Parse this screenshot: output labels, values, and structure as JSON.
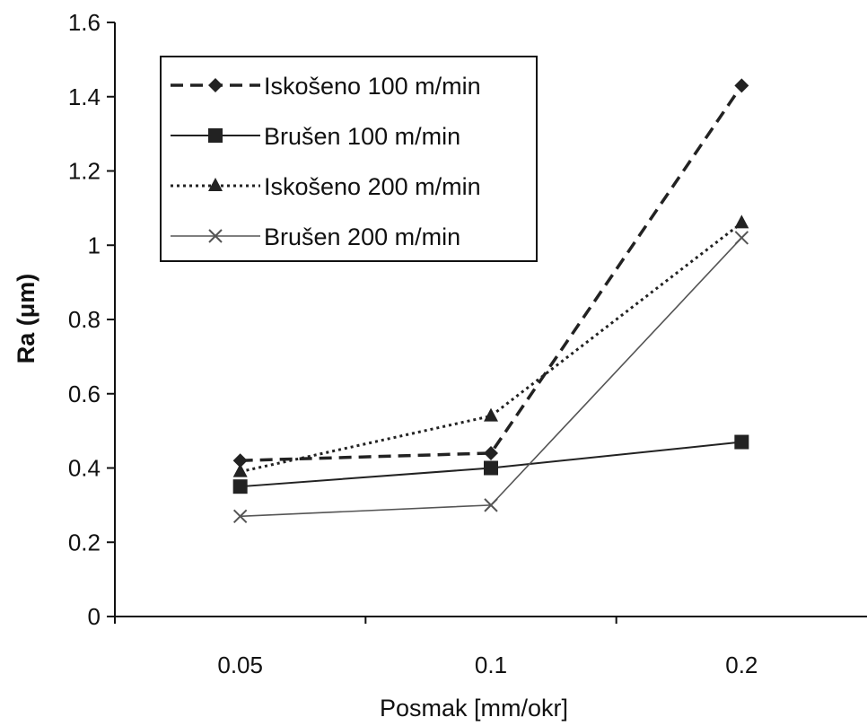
{
  "chart_data": {
    "type": "line",
    "title": "",
    "xlabel": "Posmak [mm/okr]",
    "ylabel": "Ra (μm)",
    "categories": [
      "0.05",
      "0.1",
      "0.2"
    ],
    "ylim": [
      0,
      1.6
    ],
    "yticks": [
      0,
      0.2,
      0.4,
      0.6,
      0.8,
      1,
      1.2,
      1.4,
      1.6
    ],
    "ytick_labels": [
      "0",
      "0.2",
      "0.4",
      "0.6",
      "0.8",
      "1",
      "1.2",
      "1.4",
      "1.6"
    ],
    "grid": false,
    "legend_position": "top-left",
    "series": [
      {
        "name": "Iskošeno 100 m/min",
        "values": [
          0.42,
          0.44,
          1.43
        ],
        "marker": "diamond",
        "line": "dashed",
        "color": "#222222"
      },
      {
        "name": "Brušen 100 m/min",
        "values": [
          0.35,
          0.4,
          0.47
        ],
        "marker": "square",
        "line": "solid",
        "color": "#222222"
      },
      {
        "name": "Iskošeno 200 m/min",
        "values": [
          0.39,
          0.54,
          1.06
        ],
        "marker": "triangle",
        "line": "dotted",
        "color": "#222222"
      },
      {
        "name": "Brušen 200 m/min",
        "values": [
          0.27,
          0.3,
          1.02
        ],
        "marker": "x",
        "line": "solid-thin",
        "color": "#555555"
      }
    ]
  }
}
